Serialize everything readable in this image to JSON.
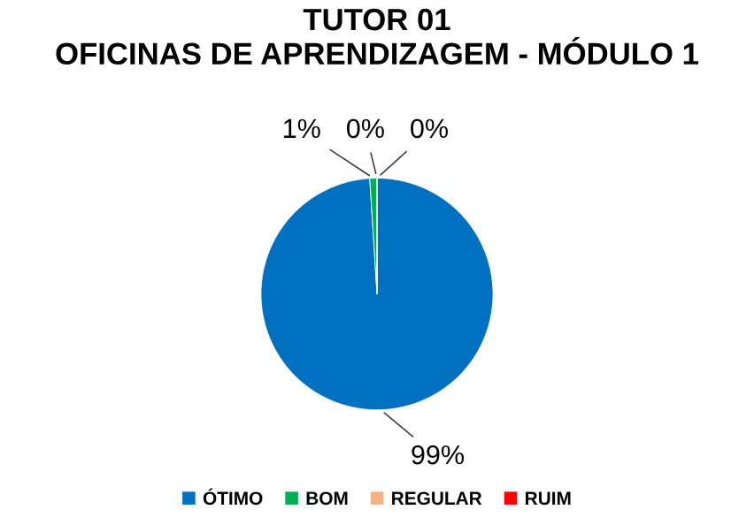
{
  "chart_data": {
    "type": "pie",
    "title": "TUTOR 01\nOFICINAS DE APRENDIZAGEM - MÓDULO 1",
    "categories": [
      "ÓTIMO",
      "BOM",
      "REGULAR",
      "RUIM"
    ],
    "values": [
      99,
      1,
      0,
      0
    ],
    "colors": [
      "#0070c0",
      "#00b050",
      "#f4b183",
      "#ff0000"
    ],
    "value_labels": [
      "99%",
      "1%",
      "0%",
      "0%"
    ],
    "legend": "bottom"
  }
}
